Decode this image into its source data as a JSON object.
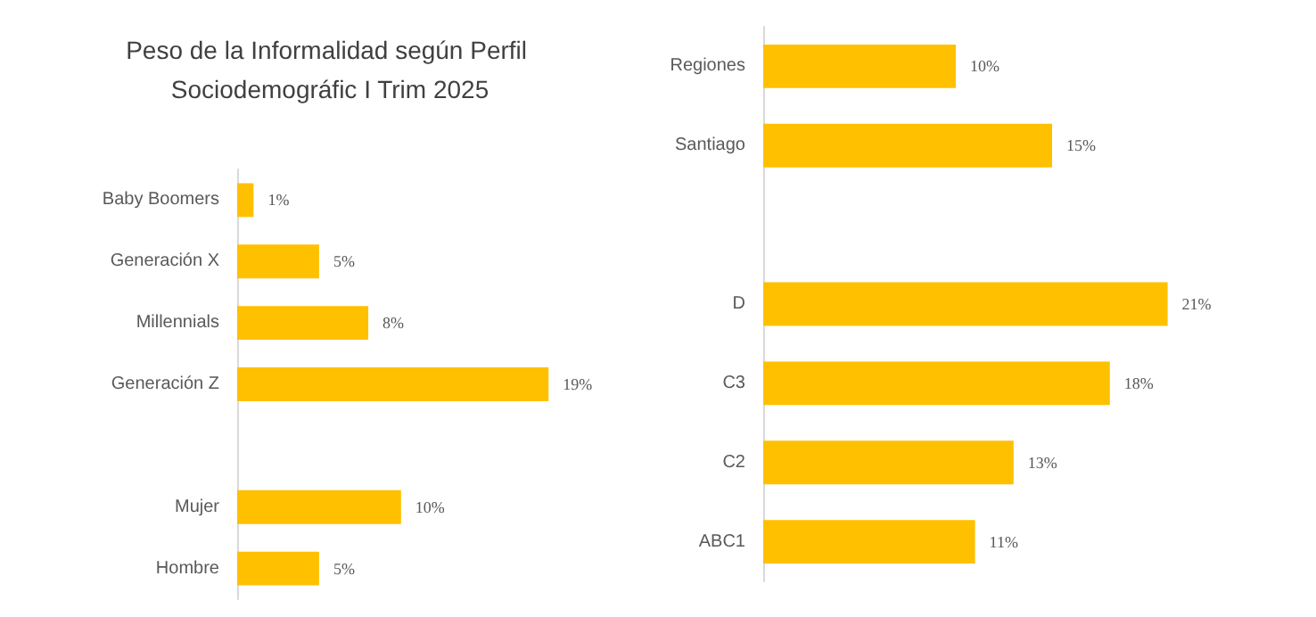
{
  "chart_data": [
    {
      "type": "bar",
      "orientation": "horizontal",
      "title": "Peso de la Informalidad según Perfil Sociodemográfic I Trim 2025",
      "categories": [
        "Baby Boomers",
        "Generación X",
        "Millennials",
        "Generación Z",
        null,
        "Mujer",
        "Hombre"
      ],
      "values": [
        1,
        5,
        8,
        19,
        null,
        10,
        5
      ],
      "value_labels": [
        "1%",
        "5%",
        "8%",
        "19%",
        null,
        "10%",
        "5%"
      ],
      "color": "#ffc000",
      "tick_labels": "y"
    },
    {
      "type": "bar",
      "orientation": "horizontal",
      "categories": [
        "Regiones",
        "Santiago",
        null,
        "D",
        "C3",
        "C2",
        "ABC1"
      ],
      "values": [
        10,
        15,
        null,
        21,
        18,
        13,
        11
      ],
      "value_labels": [
        "10%",
        "15%",
        null,
        "21%",
        "18%",
        "13%",
        "11%"
      ],
      "color": "#ffc000",
      "tick_labels": "y"
    }
  ]
}
